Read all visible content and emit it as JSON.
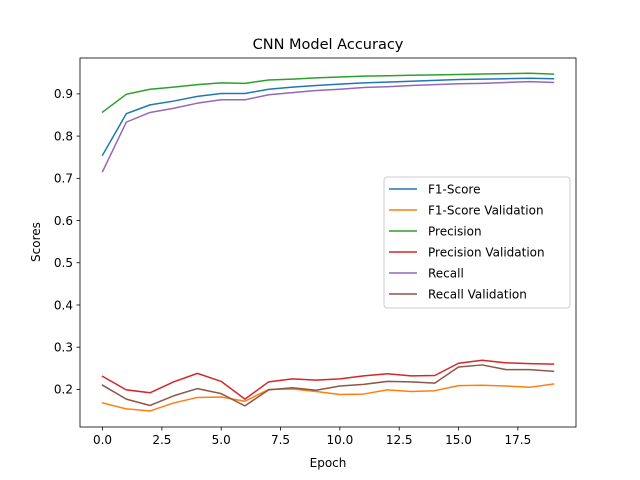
{
  "chart_data": {
    "type": "line",
    "title": "CNN Model Accuracy",
    "xlabel": "Epoch",
    "ylabel": "Scores",
    "xlim": [
      -0.95,
      19.95
    ],
    "ylim": [
      0.111,
      0.985
    ],
    "xticks": [
      0,
      2.5,
      5,
      7.5,
      10,
      12.5,
      15,
      17.5
    ],
    "xtick_labels": [
      "0.0",
      "2.5",
      "5.0",
      "7.5",
      "10.0",
      "12.5",
      "15.0",
      "17.5"
    ],
    "yticks": [
      0.2,
      0.3,
      0.4,
      0.5,
      0.6,
      0.7,
      0.8,
      0.9
    ],
    "ytick_labels": [
      "0.2",
      "0.3",
      "0.4",
      "0.5",
      "0.6",
      "0.7",
      "0.8",
      "0.9"
    ],
    "grid": false,
    "legend_position": "center-right",
    "x": [
      0,
      1,
      2,
      3,
      4,
      5,
      6,
      7,
      8,
      9,
      10,
      11,
      12,
      13,
      14,
      15,
      16,
      17,
      18,
      19
    ],
    "series": [
      {
        "name": "F1-Score",
        "color": "#1f77b4",
        "values": [
          0.755,
          0.853,
          0.874,
          0.883,
          0.894,
          0.901,
          0.901,
          0.911,
          0.916,
          0.92,
          0.923,
          0.926,
          0.928,
          0.93,
          0.932,
          0.934,
          0.935,
          0.936,
          0.937,
          0.936
        ]
      },
      {
        "name": "F1-Score Validation",
        "color": "#ff7f0e",
        "values": [
          0.168,
          0.154,
          0.149,
          0.168,
          0.181,
          0.182,
          0.172,
          0.2,
          0.201,
          0.195,
          0.188,
          0.189,
          0.199,
          0.195,
          0.197,
          0.209,
          0.21,
          0.208,
          0.205,
          0.213
        ]
      },
      {
        "name": "Precision",
        "color": "#2ca02c",
        "values": [
          0.857,
          0.899,
          0.911,
          0.916,
          0.922,
          0.926,
          0.925,
          0.933,
          0.935,
          0.938,
          0.94,
          0.942,
          0.943,
          0.944,
          0.945,
          0.946,
          0.947,
          0.948,
          0.949,
          0.947
        ]
      },
      {
        "name": "Precision Validation",
        "color": "#d62728",
        "values": [
          0.231,
          0.199,
          0.192,
          0.218,
          0.238,
          0.219,
          0.177,
          0.218,
          0.225,
          0.222,
          0.225,
          0.232,
          0.237,
          0.232,
          0.233,
          0.262,
          0.269,
          0.263,
          0.261,
          0.26
        ]
      },
      {
        "name": "Recall",
        "color": "#9467bd",
        "values": [
          0.716,
          0.833,
          0.856,
          0.866,
          0.878,
          0.886,
          0.886,
          0.898,
          0.903,
          0.908,
          0.911,
          0.915,
          0.917,
          0.92,
          0.922,
          0.924,
          0.925,
          0.927,
          0.929,
          0.927
        ]
      },
      {
        "name": "Recall Validation",
        "color": "#8c564b",
        "values": [
          0.21,
          0.177,
          0.162,
          0.185,
          0.202,
          0.19,
          0.161,
          0.199,
          0.204,
          0.198,
          0.208,
          0.212,
          0.219,
          0.218,
          0.215,
          0.253,
          0.258,
          0.247,
          0.247,
          0.243
        ]
      }
    ]
  }
}
